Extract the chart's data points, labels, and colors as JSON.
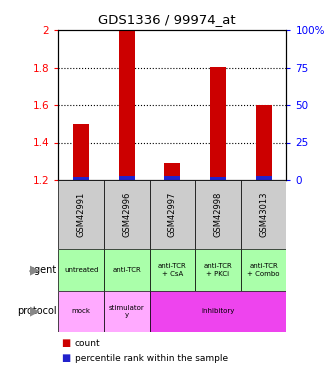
{
  "title": "GDS1336 / 99974_at",
  "samples": [
    "GSM42991",
    "GSM42996",
    "GSM42997",
    "GSM42998",
    "GSM43013"
  ],
  "count_values": [
    1.5,
    2.0,
    1.29,
    1.8,
    1.6
  ],
  "percentile_values": [
    2.0,
    3.0,
    2.5,
    2.0,
    2.5
  ],
  "ylim_left": [
    1.2,
    2.0
  ],
  "ylim_right": [
    0,
    100
  ],
  "left_ticks": [
    1.2,
    1.4,
    1.6,
    1.8,
    2.0
  ],
  "right_ticks": [
    0,
    25,
    50,
    75,
    100
  ],
  "left_tick_labels": [
    "1.2",
    "1.4",
    "1.6",
    "1.8",
    "2"
  ],
  "right_tick_labels": [
    "0",
    "25",
    "50",
    "75",
    "100%"
  ],
  "bar_bottom": 1.2,
  "count_color": "#cc0000",
  "percentile_color": "#2222cc",
  "agent_labels": [
    "untreated",
    "anti-TCR",
    "anti-TCR\n+ CsA",
    "anti-TCR\n+ PKCi",
    "anti-TCR\n+ Combo"
  ],
  "protocol_spans": [
    {
      "label": "mock",
      "start": 0,
      "end": 1,
      "color": "#ffaaff"
    },
    {
      "label": "stimulator\ny",
      "start": 1,
      "end": 2,
      "color": "#ffaaff"
    },
    {
      "label": "inhibitory",
      "start": 2,
      "end": 5,
      "color": "#ee44ee"
    }
  ],
  "agent_bg": "#aaffaa",
  "sample_bg": "#cccccc",
  "legend_count_color": "#cc0000",
  "legend_pct_color": "#2222cc",
  "background_color": "#ffffff",
  "grid_yticks": [
    1.4,
    1.6,
    1.8
  ]
}
